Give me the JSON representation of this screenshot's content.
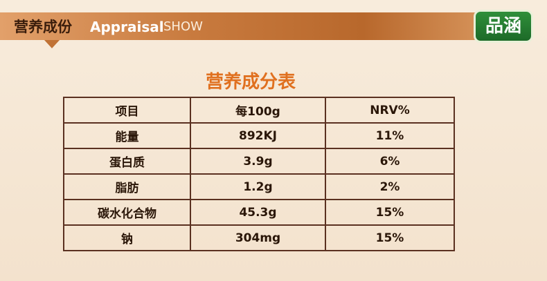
{
  "header": {
    "title": "营养成份",
    "subtitle": "Appraisal",
    "tag": "SHOW"
  },
  "logo": "品涵",
  "table": {
    "title": "营养成分表",
    "columns": [
      "项目",
      "每100g",
      "NRV%"
    ],
    "rows": [
      [
        "能量",
        "892KJ",
        "11%"
      ],
      [
        "蛋白质",
        "3.9g",
        "6%"
      ],
      [
        "脂肪",
        "1.2g",
        "2%"
      ],
      [
        "碳水化合物",
        "45.3g",
        "15%"
      ],
      [
        "钠",
        "304mg",
        "15%"
      ]
    ]
  }
}
